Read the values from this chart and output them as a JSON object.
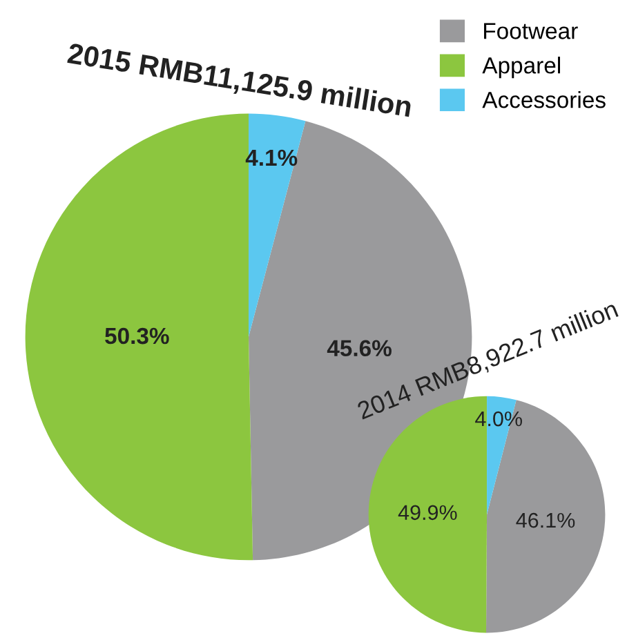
{
  "chart_data": [
    {
      "type": "pie",
      "title": "2015 RMB11,125.9 million",
      "categories": [
        "Footwear",
        "Apparel",
        "Accessories"
      ],
      "values": [
        45.6,
        50.3,
        4.1
      ],
      "value_labels": [
        "45.6%",
        "50.3%",
        "4.1%"
      ],
      "colors": [
        "#9a9a9c",
        "#8cc63f",
        "#5bc8f0"
      ],
      "legend": "top right"
    },
    {
      "type": "pie",
      "title": "2014 RMB8,922.7 million",
      "categories": [
        null,
        null,
        null
      ],
      "values": [
        46.1,
        49.9,
        4.0
      ],
      "value_labels": [
        "46.1%",
        "49.9%",
        "4.0%"
      ],
      "colors": [
        "#9a9a9c",
        "#8cc63f",
        "#5bc8f0"
      ]
    }
  ]
}
